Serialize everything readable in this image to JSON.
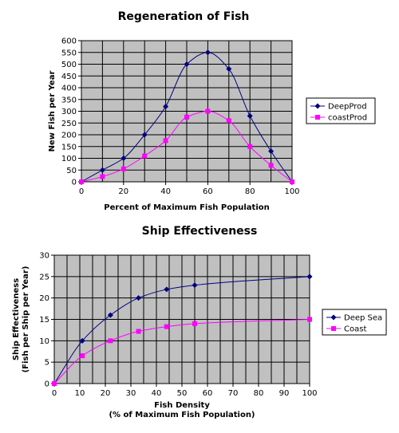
{
  "chart_data": [
    {
      "type": "line",
      "title": "Regeneration of Fish",
      "xlabel": "Percent of Maximum Fish Population",
      "ylabel": "New Fish per Year",
      "xlim": [
        0,
        100
      ],
      "ylim": [
        0,
        600
      ],
      "x_ticks": [
        "0",
        "20",
        "40",
        "60",
        "80",
        "100"
      ],
      "y_ticks": [
        "0",
        "50",
        "100",
        "150",
        "200",
        "250",
        "300",
        "350",
        "400",
        "450",
        "500",
        "550",
        "600"
      ],
      "grid": true,
      "legend_position": "right",
      "series": [
        {
          "name": "DeepProd",
          "color": "#000080",
          "marker": "diamond",
          "x": [
            0,
            10,
            20,
            30,
            40,
            50,
            60,
            70,
            80,
            90,
            100
          ],
          "y": [
            0,
            50,
            100,
            200,
            320,
            500,
            550,
            480,
            280,
            130,
            0
          ]
        },
        {
          "name": "coastProd",
          "color": "#ff00ff",
          "marker": "square",
          "x": [
            0,
            10,
            20,
            30,
            40,
            50,
            60,
            70,
            80,
            90,
            100
          ],
          "y": [
            0,
            22,
            55,
            110,
            175,
            275,
            300,
            260,
            150,
            70,
            0
          ]
        }
      ]
    },
    {
      "type": "line",
      "title": "Ship Effectiveness",
      "xlabel": "Fish Density",
      "xlabel2": "(% of Maximum Fish Population)",
      "ylabel": "Ship Effectiveness",
      "ylabel2": "(Fish per Ship per Year)",
      "xlim": [
        0,
        100
      ],
      "ylim": [
        0,
        30
      ],
      "x_ticks": [
        "0",
        "10",
        "20",
        "30",
        "40",
        "50",
        "60",
        "70",
        "80",
        "90",
        "100"
      ],
      "y_ticks": [
        "0",
        "5",
        "10",
        "15",
        "20",
        "25",
        "30"
      ],
      "grid": true,
      "legend_position": "right",
      "series": [
        {
          "name": "Deep Sea",
          "color": "#000080",
          "marker": "diamond",
          "x": [
            0,
            11,
            22,
            33,
            44,
            55,
            100
          ],
          "y": [
            0,
            10,
            16,
            20,
            22,
            23,
            25
          ]
        },
        {
          "name": "Coast",
          "color": "#ff00ff",
          "marker": "square",
          "x": [
            0,
            11,
            22,
            33,
            44,
            55,
            100
          ],
          "y": [
            0,
            6.5,
            10,
            12.2,
            13.3,
            14,
            15
          ]
        }
      ]
    }
  ]
}
